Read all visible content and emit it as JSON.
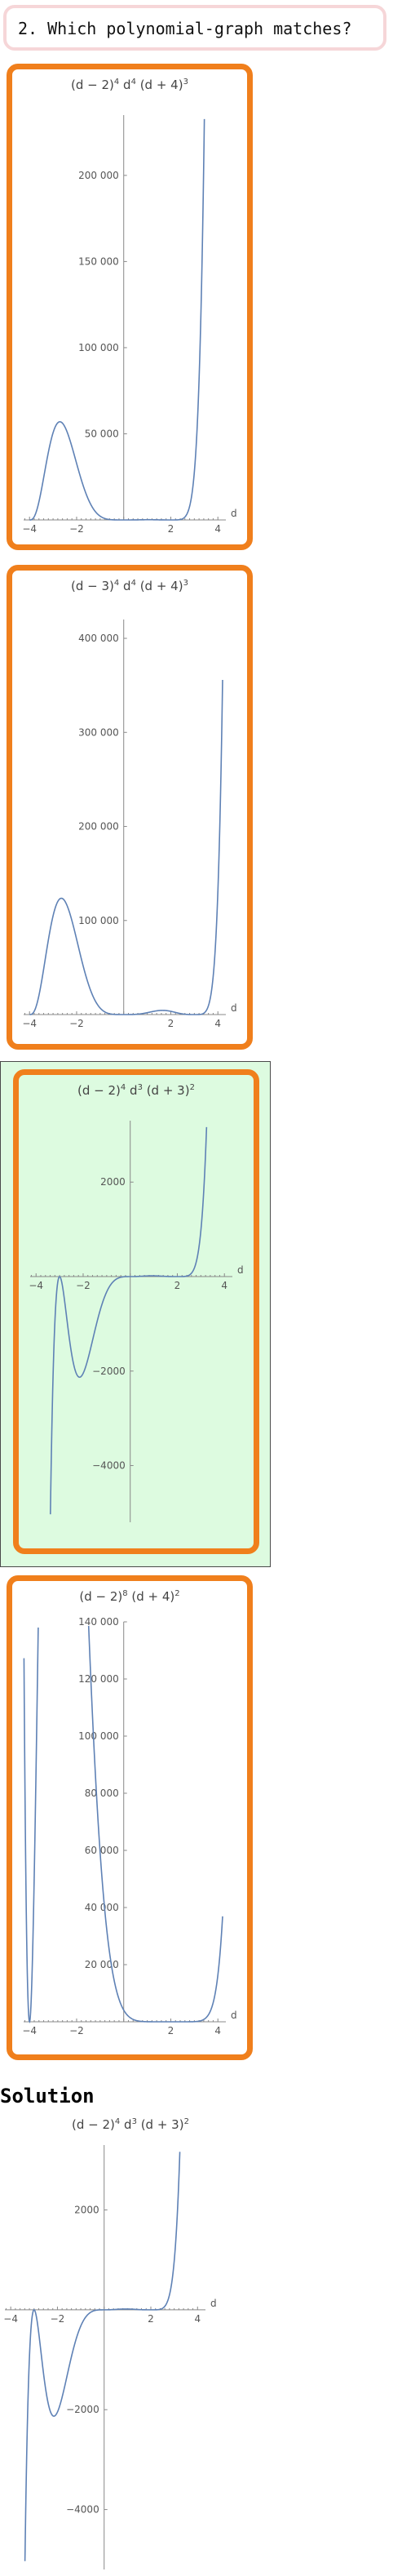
{
  "question": {
    "label": "2. Which polynomial-graph matches?"
  },
  "options": [
    {
      "title_parts": [
        "(d − 2)",
        "4",
        " d",
        "4",
        " (d + 4)",
        "3"
      ],
      "correct": false,
      "x_axis_label": "d",
      "x_ticks": [
        {
          "v": -4,
          "label": "−4"
        },
        {
          "v": -2,
          "label": "−2"
        },
        {
          "v": 2,
          "label": "2"
        },
        {
          "v": 4,
          "label": "4"
        }
      ],
      "y_ticks": [
        {
          "v": 50000,
          "label": "50 000"
        },
        {
          "v": 100000,
          "label": "100 000"
        },
        {
          "v": 150000,
          "label": "150 000"
        },
        {
          "v": 200000,
          "label": "200 000"
        }
      ],
      "chart_data": {
        "type": "line",
        "function": "(d-2)^4 d^4 (d+4)^3",
        "xlim": [
          -4.25,
          4.2
        ],
        "ylim": [
          0,
          235000
        ],
        "xlabel": "d"
      }
    },
    {
      "title_parts": [
        "(d − 3)",
        "4",
        " d",
        "4",
        " (d + 4)",
        "3"
      ],
      "correct": false,
      "x_axis_label": "d",
      "x_ticks": [
        {
          "v": -4,
          "label": "−4"
        },
        {
          "v": -2,
          "label": "−2"
        },
        {
          "v": 2,
          "label": "2"
        },
        {
          "v": 4,
          "label": "4"
        }
      ],
      "y_ticks": [
        {
          "v": 100000,
          "label": "100 000"
        },
        {
          "v": 200000,
          "label": "200 000"
        },
        {
          "v": 300000,
          "label": "300 000"
        },
        {
          "v": 400000,
          "label": "400 000"
        }
      ],
      "chart_data": {
        "type": "line",
        "function": "(d-3)^4 d^4 (d+4)^3",
        "xlim": [
          -4.25,
          4.2
        ],
        "ylim": [
          0,
          420000
        ],
        "xlabel": "d"
      }
    },
    {
      "title_parts": [
        "(d − 2)",
        "4",
        " d",
        "3",
        " (d + 3)",
        "2"
      ],
      "correct": true,
      "x_axis_label": "d",
      "x_ticks": [
        {
          "v": -4,
          "label": "−4"
        },
        {
          "v": -2,
          "label": "−2"
        },
        {
          "v": 2,
          "label": "2"
        },
        {
          "v": 4,
          "label": "4"
        }
      ],
      "y_ticks": [
        {
          "v": 2000,
          "label": "2000"
        },
        {
          "v": -2000,
          "label": "−2000"
        },
        {
          "v": -4000,
          "label": "−4000"
        }
      ],
      "chart_data": {
        "type": "line",
        "function": "(d-2)^4 d^3 (d+3)^2",
        "xlim": [
          -4.25,
          4.2
        ],
        "ylim": [
          -5200,
          3300
        ],
        "xlabel": "d"
      }
    },
    {
      "title_parts": [
        "(d − 2)",
        "8",
        " (d + 4)",
        "2"
      ],
      "correct": false,
      "x_axis_label": "d",
      "x_ticks": [
        {
          "v": -4,
          "label": "−4"
        },
        {
          "v": -2,
          "label": "−2"
        },
        {
          "v": 2,
          "label": "2"
        },
        {
          "v": 4,
          "label": "4"
        }
      ],
      "y_ticks": [
        {
          "v": 20000,
          "label": "20 000"
        },
        {
          "v": 40000,
          "label": "40 000"
        },
        {
          "v": 60000,
          "label": "60 000"
        },
        {
          "v": 80000,
          "label": "80 000"
        },
        {
          "v": 100000,
          "label": "100 000"
        },
        {
          "v": 120000,
          "label": "120 000"
        },
        {
          "v": 140000,
          "label": "140 000"
        }
      ],
      "chart_data": {
        "type": "line",
        "function": "(d-2)^8 (d+4)^2",
        "xlim": [
          -4.25,
          4.2
        ],
        "ylim": [
          0,
          140000
        ],
        "xlabel": "d"
      }
    }
  ],
  "solution": {
    "heading": "Solution",
    "title_parts": [
      "(d − 2)",
      "4",
      " d",
      "3",
      " (d + 3)",
      "2"
    ],
    "x_axis_label": "d",
    "x_ticks": [
      {
        "v": -4,
        "label": "−4"
      },
      {
        "v": -2,
        "label": "−2"
      },
      {
        "v": 2,
        "label": "2"
      },
      {
        "v": 4,
        "label": "4"
      }
    ],
    "y_ticks": [
      {
        "v": 2000,
        "label": "2000"
      },
      {
        "v": -2000,
        "label": "−2000"
      },
      {
        "v": -4000,
        "label": "−4000"
      }
    ],
    "chart_data": {
      "type": "line",
      "function": "(d-2)^4 d^3 (d+3)^2",
      "xlim": [
        -4.25,
        4.2
      ],
      "ylim": [
        -5200,
        3300
      ],
      "xlabel": "d"
    }
  },
  "colors": {
    "curve": "#5e81b5",
    "card_border": "#f07f1c",
    "correct_bg": "#ddfbe0",
    "question_border": "#f6d6d8",
    "axis": "#888888"
  }
}
